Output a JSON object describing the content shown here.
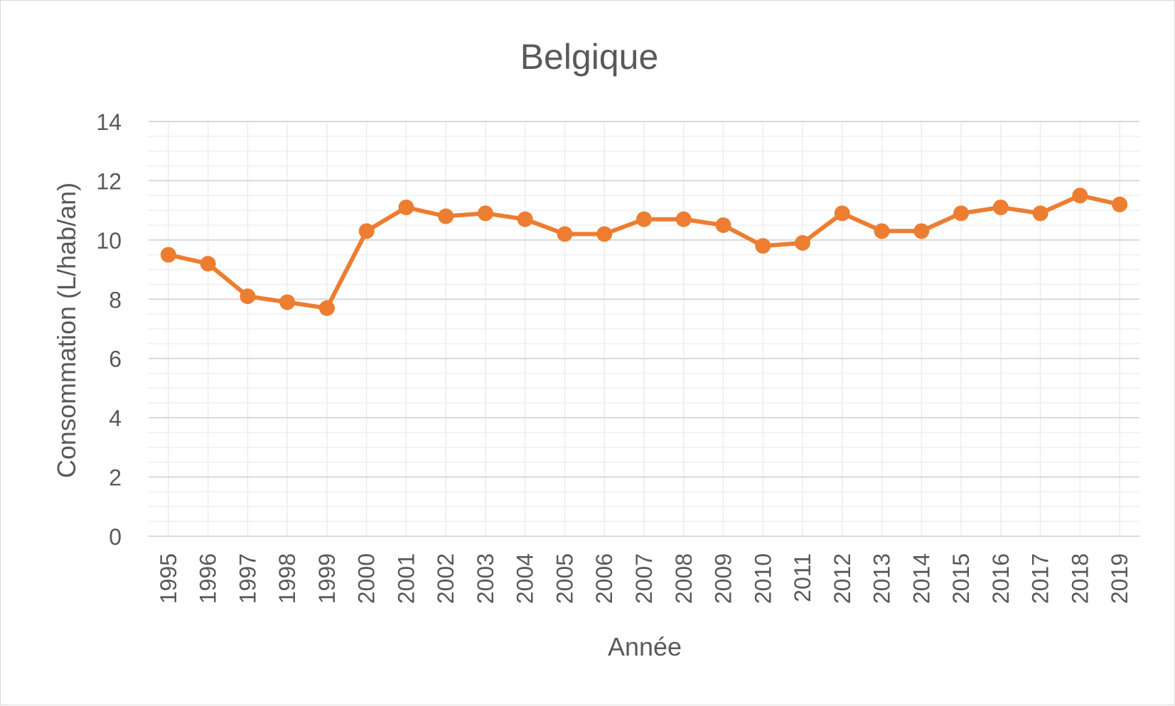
{
  "chart_data": {
    "type": "line",
    "title": "Belgique",
    "xlabel": "Année",
    "ylabel": "Consommation (L/hab/an)",
    "ylim": [
      0,
      14
    ],
    "y_major_step": 2,
    "y_minor_step": 0.5,
    "grid": true,
    "legend": "none",
    "x": [
      "1995",
      "1996",
      "1997",
      "1998",
      "1999",
      "2000",
      "2001",
      "2002",
      "2003",
      "2004",
      "2005",
      "2006",
      "2007",
      "2008",
      "2009",
      "2010",
      "2011",
      "2012",
      "2013",
      "2014",
      "2015",
      "2016",
      "2017",
      "2018",
      "2019"
    ],
    "y_ticks": [
      "0",
      "2",
      "4",
      "6",
      "8",
      "10",
      "12",
      "14"
    ],
    "series": [
      {
        "values": [
          9.5,
          9.2,
          8.1,
          7.9,
          7.7,
          10.3,
          11.1,
          10.8,
          10.9,
          10.7,
          10.2,
          10.2,
          10.7,
          10.7,
          10.5,
          9.8,
          9.9,
          10.9,
          10.3,
          10.3,
          10.9,
          11.1,
          10.9,
          11.5,
          11.2
        ],
        "color": "#ed7d31"
      }
    ]
  }
}
